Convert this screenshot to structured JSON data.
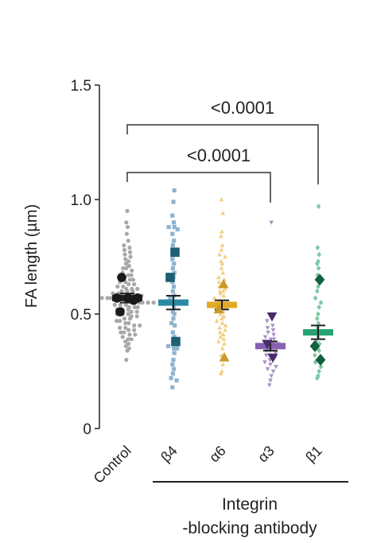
{
  "chart_data": {
    "type": "scatter",
    "title": "",
    "ylabel": "FA length (µm)",
    "ylim": [
      0,
      1.5
    ],
    "yticks": [
      {
        "value": 0,
        "label": "0"
      },
      {
        "value": 0.5,
        "label": "0.5"
      },
      {
        "value": 1.0,
        "label": "1.0"
      },
      {
        "value": 1.5,
        "label": "1.5"
      }
    ],
    "grid": false,
    "categories": [
      "Control",
      "β4",
      "α6",
      "α3",
      "β1"
    ],
    "group_label": {
      "line1": "Integrin",
      "line2": "-blocking antibody"
    },
    "comparisons": [
      {
        "from": "Control",
        "to": "α3",
        "label": "<0.0001"
      },
      {
        "from": "Control",
        "to": "β1",
        "label": "<0.0001"
      }
    ],
    "series": [
      {
        "category": "Control",
        "marker": "circle",
        "point_color": "#a8a8a8",
        "rep_color": "#1a1a1a",
        "mean": 0.57,
        "sem": 0.02,
        "bar_color": "#222222",
        "err_color": "#222222",
        "reps": [
          0.66,
          0.57,
          0.57,
          0.57,
          0.56,
          0.51
        ],
        "points": [
          0.95,
          0.9,
          0.88,
          0.85,
          0.82,
          0.8,
          0.79,
          0.78,
          0.77,
          0.76,
          0.75,
          0.74,
          0.73,
          0.72,
          0.71,
          0.7,
          0.7,
          0.69,
          0.68,
          0.67,
          0.67,
          0.66,
          0.66,
          0.65,
          0.65,
          0.64,
          0.64,
          0.63,
          0.63,
          0.62,
          0.62,
          0.61,
          0.61,
          0.61,
          0.6,
          0.6,
          0.6,
          0.59,
          0.59,
          0.59,
          0.58,
          0.58,
          0.58,
          0.58,
          0.57,
          0.57,
          0.57,
          0.57,
          0.56,
          0.56,
          0.56,
          0.56,
          0.55,
          0.55,
          0.55,
          0.55,
          0.54,
          0.54,
          0.54,
          0.53,
          0.53,
          0.53,
          0.52,
          0.52,
          0.52,
          0.51,
          0.51,
          0.5,
          0.5,
          0.5,
          0.49,
          0.49,
          0.48,
          0.48,
          0.47,
          0.47,
          0.46,
          0.46,
          0.45,
          0.45,
          0.44,
          0.44,
          0.43,
          0.43,
          0.42,
          0.42,
          0.41,
          0.41,
          0.4,
          0.39,
          0.39,
          0.38,
          0.37,
          0.36,
          0.35,
          0.34,
          0.3
        ]
      },
      {
        "category": "β4",
        "marker": "square",
        "point_color": "#8fb3cf",
        "rep_color": "#1d5f73",
        "mean": 0.55,
        "sem": 0.03,
        "bar_color": "#2b8aa4",
        "err_color": "#222222",
        "reps": [
          0.77,
          0.66,
          0.38
        ],
        "points": [
          1.04,
          0.99,
          0.93,
          0.9,
          0.88,
          0.88,
          0.87,
          0.85,
          0.82,
          0.8,
          0.78,
          0.76,
          0.74,
          0.72,
          0.7,
          0.68,
          0.66,
          0.64,
          0.62,
          0.6,
          0.58,
          0.57,
          0.55,
          0.53,
          0.51,
          0.5,
          0.48,
          0.46,
          0.45,
          0.42,
          0.4,
          0.38,
          0.36,
          0.35,
          0.35,
          0.33,
          0.3,
          0.28,
          0.26,
          0.24,
          0.22,
          0.21,
          0.18
        ]
      },
      {
        "category": "α6",
        "marker": "triangle-up",
        "point_color": "#f2cf82",
        "rep_color": "#c99a28",
        "mean": 0.54,
        "sem": 0.02,
        "bar_color": "#e3a924",
        "err_color": "#222222",
        "reps": [
          0.63,
          0.52,
          0.31
        ],
        "points": [
          1.0,
          0.94,
          0.86,
          0.84,
          0.8,
          0.78,
          0.76,
          0.75,
          0.73,
          0.72,
          0.7,
          0.68,
          0.66,
          0.65,
          0.64,
          0.63,
          0.62,
          0.61,
          0.6,
          0.6,
          0.59,
          0.58,
          0.57,
          0.56,
          0.55,
          0.55,
          0.54,
          0.53,
          0.52,
          0.51,
          0.5,
          0.49,
          0.48,
          0.47,
          0.46,
          0.45,
          0.44,
          0.43,
          0.42,
          0.41,
          0.4,
          0.39,
          0.38,
          0.37,
          0.35,
          0.32,
          0.28,
          0.25,
          0.24
        ]
      },
      {
        "category": "α3",
        "marker": "triangle-down",
        "point_color": "#a993c5",
        "rep_color": "#4a2a6b",
        "mean": 0.36,
        "sem": 0.02,
        "bar_color": "#8561b0",
        "err_color": "#222222",
        "reps": [
          0.49,
          0.37,
          0.31
        ],
        "points": [
          0.9,
          0.47,
          0.45,
          0.44,
          0.43,
          0.42,
          0.41,
          0.4,
          0.39,
          0.39,
          0.38,
          0.38,
          0.37,
          0.37,
          0.36,
          0.36,
          0.35,
          0.35,
          0.34,
          0.34,
          0.33,
          0.32,
          0.32,
          0.31,
          0.3,
          0.29,
          0.28,
          0.27,
          0.26,
          0.25,
          0.23,
          0.21,
          0.19
        ]
      },
      {
        "category": "β1",
        "marker": "diamond",
        "point_color": "#7ec8a4",
        "rep_color": "#13603d",
        "mean": 0.42,
        "sem": 0.03,
        "bar_color": "#27a372",
        "err_color": "#222222",
        "reps": [
          0.65,
          0.36,
          0.3
        ],
        "points": [
          0.97,
          0.79,
          0.76,
          0.73,
          0.72,
          0.7,
          0.67,
          0.64,
          0.62,
          0.6,
          0.57,
          0.55,
          0.53,
          0.5,
          0.48,
          0.46,
          0.44,
          0.42,
          0.4,
          0.38,
          0.37,
          0.35,
          0.34,
          0.32,
          0.31,
          0.29,
          0.27,
          0.25,
          0.23,
          0.22
        ]
      }
    ]
  }
}
